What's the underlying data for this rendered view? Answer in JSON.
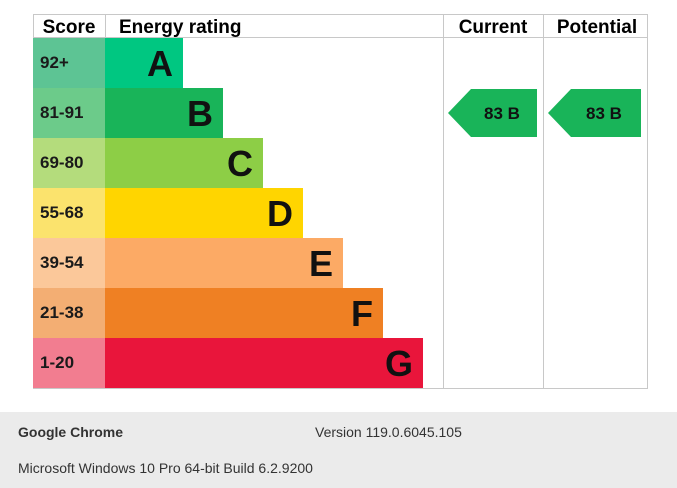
{
  "chart_data": {
    "type": "table",
    "headers": {
      "score": "Score",
      "rating": "Energy rating",
      "current": "Current",
      "potential": "Potential"
    },
    "bands": [
      {
        "score": "92+",
        "letter": "A",
        "box_color": "#5dc494",
        "bar_color": "#00c781"
      },
      {
        "score": "81-91",
        "letter": "B",
        "box_color": "#6ccb8a",
        "bar_color": "#19b459"
      },
      {
        "score": "69-80",
        "letter": "C",
        "box_color": "#b4dc7c",
        "bar_color": "#8dce46"
      },
      {
        "score": "55-68",
        "letter": "D",
        "box_color": "#fbe36d",
        "bar_color": "#ffd500"
      },
      {
        "score": "39-54",
        "letter": "E",
        "box_color": "#fbc89a",
        "bar_color": "#fcaa65"
      },
      {
        "score": "21-38",
        "letter": "F",
        "box_color": "#f3ae73",
        "bar_color": "#ef8023"
      },
      {
        "score": "1-20",
        "letter": "G",
        "box_color": "#f27d90",
        "bar_color": "#e9153b"
      }
    ],
    "current": {
      "label": "83 B",
      "value": 83,
      "band": "B",
      "color": "#19b459"
    },
    "potential": {
      "label": "83 B",
      "value": 83,
      "band": "B",
      "color": "#19b459"
    }
  },
  "footer": {
    "browser": "Google Chrome",
    "version": "Version 119.0.6045.105",
    "os": "Microsoft Windows 10 Pro 64-bit Build 6.2.9200"
  }
}
